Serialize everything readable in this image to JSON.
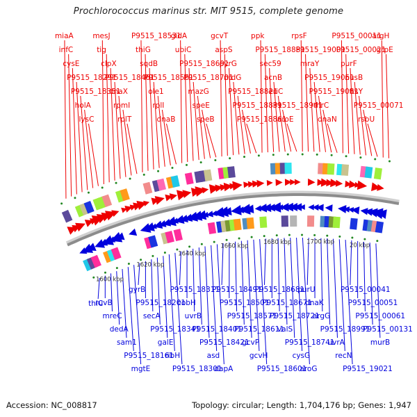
{
  "title": "Prochlorococcus marinus str. MIT 9515, complete genome",
  "footer": {
    "accession": "Accession: NC_008817",
    "summary": "Topology: circular; Length: 1,704,176 bp; Genes: 1,947"
  },
  "colors": {
    "forward_strand": "#ee0000",
    "reverse_strand": "#0000dd",
    "backbone": "#8c8c8c",
    "tick": "#228822"
  },
  "genome": {
    "topology": "circular",
    "length_bp": 1704176,
    "genes": 1947
  },
  "ticks": [
    "1600 kbp",
    "1620 kbp",
    "1640 kbp",
    "1660 kbp",
    "1680 kbp",
    "1700 kbp",
    "20 kbp"
  ],
  "forward_labels": [
    "miaA",
    "infC",
    "cysE",
    "P9515_18291",
    "P9515_18351",
    "holA",
    "lysC",
    "mesJ",
    "tig",
    "clpX",
    "P9515_18461",
    "dnaX",
    "rpmI",
    "rplT",
    "P9515_18531",
    "thiG",
    "sqdB",
    "P9515_18561",
    "ole1",
    "rplI",
    "dnaB",
    "gidA",
    "ubiC",
    "P9515_18691",
    "P9515_18701",
    "mazG",
    "speE",
    "speB",
    "gcvT",
    "aspS",
    "pyrG",
    "nrdG",
    "P9515_18821",
    "P9515_18831",
    "P9515_18861",
    "ppk",
    "P9515_18881",
    "sec59",
    "acnB",
    "eriC",
    "P9515_18941",
    "aroE",
    "rpsF",
    "P9515_19001",
    "mraY",
    "P9515_19051",
    "P9515_19061",
    "thrC",
    "dnaN",
    "P9515_00011",
    "P9515_00021",
    "purF",
    "nusB",
    "ftsY",
    "P9515_00071",
    "rsbU",
    "argH",
    "grpE"
  ],
  "reverse_labels": [
    "thiC",
    "ruvB",
    "mreC",
    "dedA",
    "sam1",
    "P9515_18161",
    "mgtE",
    "gyrB",
    "P9515_18201",
    "secA",
    "P9515_18341",
    "galE",
    "ribH",
    "P9515_18301",
    "P9515_18311",
    "cobH",
    "uvrB",
    "P9515_18401",
    "P9515_18421",
    "asd",
    "dapA",
    "P9515_18491",
    "P9515_18501",
    "P9515_18571",
    "P9515_18611",
    "gcvP",
    "gcvH",
    "P9515_18601",
    "P9515_18681",
    "P9515_18671",
    "P9515_18721",
    "valS",
    "P9515_18741",
    "cysG",
    "aroG",
    "purU",
    "dnaK",
    "argG",
    "P9515_18991",
    "uvrA",
    "recN",
    "P9515_19021",
    "P9515_00041",
    "P9515_00051",
    "P9515_00061",
    "P9515_00131",
    "murB"
  ]
}
